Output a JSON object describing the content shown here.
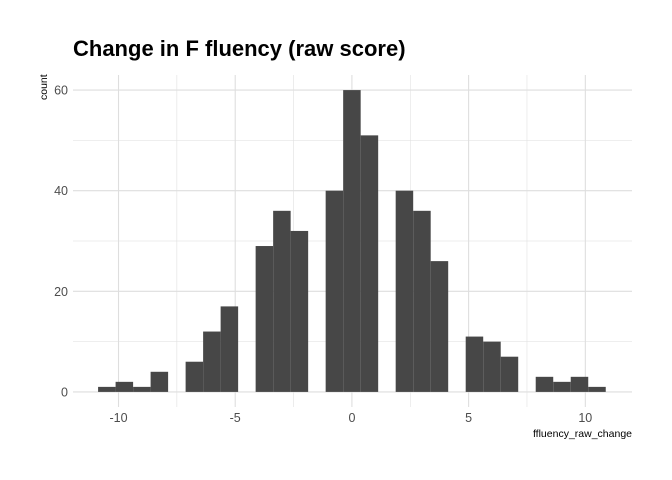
{
  "chart_data": {
    "type": "bar",
    "title": "Change in F fluency (raw score)",
    "xlabel": "ffluency_raw_change",
    "ylabel": "count",
    "x_ticks": [
      -10,
      -5,
      0,
      5,
      10
    ],
    "y_ticks": [
      0,
      20,
      40,
      60
    ],
    "xlim": [
      -11.95,
      12.0
    ],
    "ylim": [
      -3.0,
      63.0
    ],
    "grid": true,
    "bin_width": 0.75,
    "bins": [
      {
        "x": -10.5,
        "count": 1
      },
      {
        "x": -9.75,
        "count": 2
      },
      {
        "x": -9.0,
        "count": 1
      },
      {
        "x": -8.25,
        "count": 4
      },
      {
        "x": -7.5,
        "count": 0
      },
      {
        "x": -6.75,
        "count": 6
      },
      {
        "x": -6.0,
        "count": 12
      },
      {
        "x": -5.25,
        "count": 17
      },
      {
        "x": -4.5,
        "count": 0
      },
      {
        "x": -3.75,
        "count": 29
      },
      {
        "x": -3.0,
        "count": 36
      },
      {
        "x": -2.25,
        "count": 32
      },
      {
        "x": -1.5,
        "count": 0
      },
      {
        "x": -0.75,
        "count": 40
      },
      {
        "x": 0.0,
        "count": 60
      },
      {
        "x": 0.75,
        "count": 51
      },
      {
        "x": 1.5,
        "count": 0
      },
      {
        "x": 2.25,
        "count": 40
      },
      {
        "x": 3.0,
        "count": 36
      },
      {
        "x": 3.75,
        "count": 26
      },
      {
        "x": 4.5,
        "count": 0
      },
      {
        "x": 5.25,
        "count": 11
      },
      {
        "x": 6.0,
        "count": 10
      },
      {
        "x": 6.75,
        "count": 7
      },
      {
        "x": 7.5,
        "count": 0
      },
      {
        "x": 8.25,
        "count": 3
      },
      {
        "x": 9.0,
        "count": 2
      },
      {
        "x": 9.75,
        "count": 3
      },
      {
        "x": 10.5,
        "count": 1
      }
    ],
    "bar_color": "#474747",
    "grid_color": "#dedede"
  }
}
